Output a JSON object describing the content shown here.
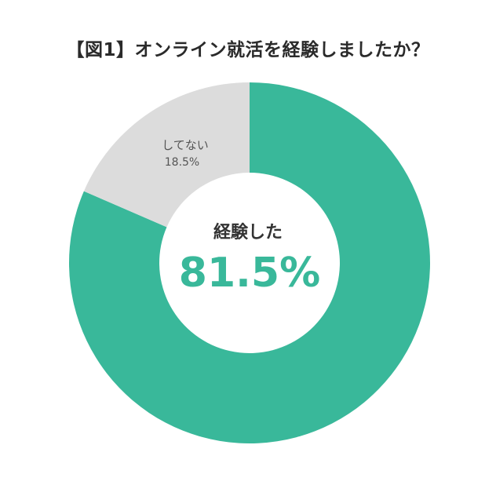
{
  "chart_data": {
    "type": "pie",
    "title": "【図1】オンライン就活を経験しましたか？",
    "categories": [
      "経験した",
      "してない"
    ],
    "values": [
      81.5,
      18.5
    ],
    "value_labels": [
      "81.5%",
      "18.5%"
    ],
    "center_label": "経験した",
    "center_value": "81.5%",
    "colors": [
      "#39b89a",
      "#dcdcdc"
    ],
    "donut": true
  }
}
